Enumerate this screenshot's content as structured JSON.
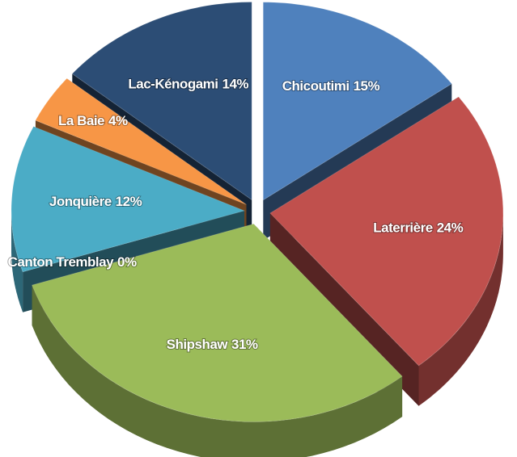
{
  "chart_data": {
    "type": "pie3d",
    "categories": [
      "Chicoutimi",
      "Laterrière",
      "Shipshaw",
      "Canton Tremblay",
      "Jonquière",
      "La Baie",
      "Lac-Kénogami"
    ],
    "values": [
      15,
      24,
      31,
      0,
      12,
      4,
      14
    ],
    "value_labels": [
      "15%",
      "24%",
      "31%",
      "0%",
      "12%",
      "4%",
      "14%"
    ],
    "colors": [
      "#4f81bd",
      "#c0504d",
      "#9bbb59",
      "#5f4b7a",
      "#4bacc6",
      "#f79646",
      "#2c4d75"
    ]
  }
}
